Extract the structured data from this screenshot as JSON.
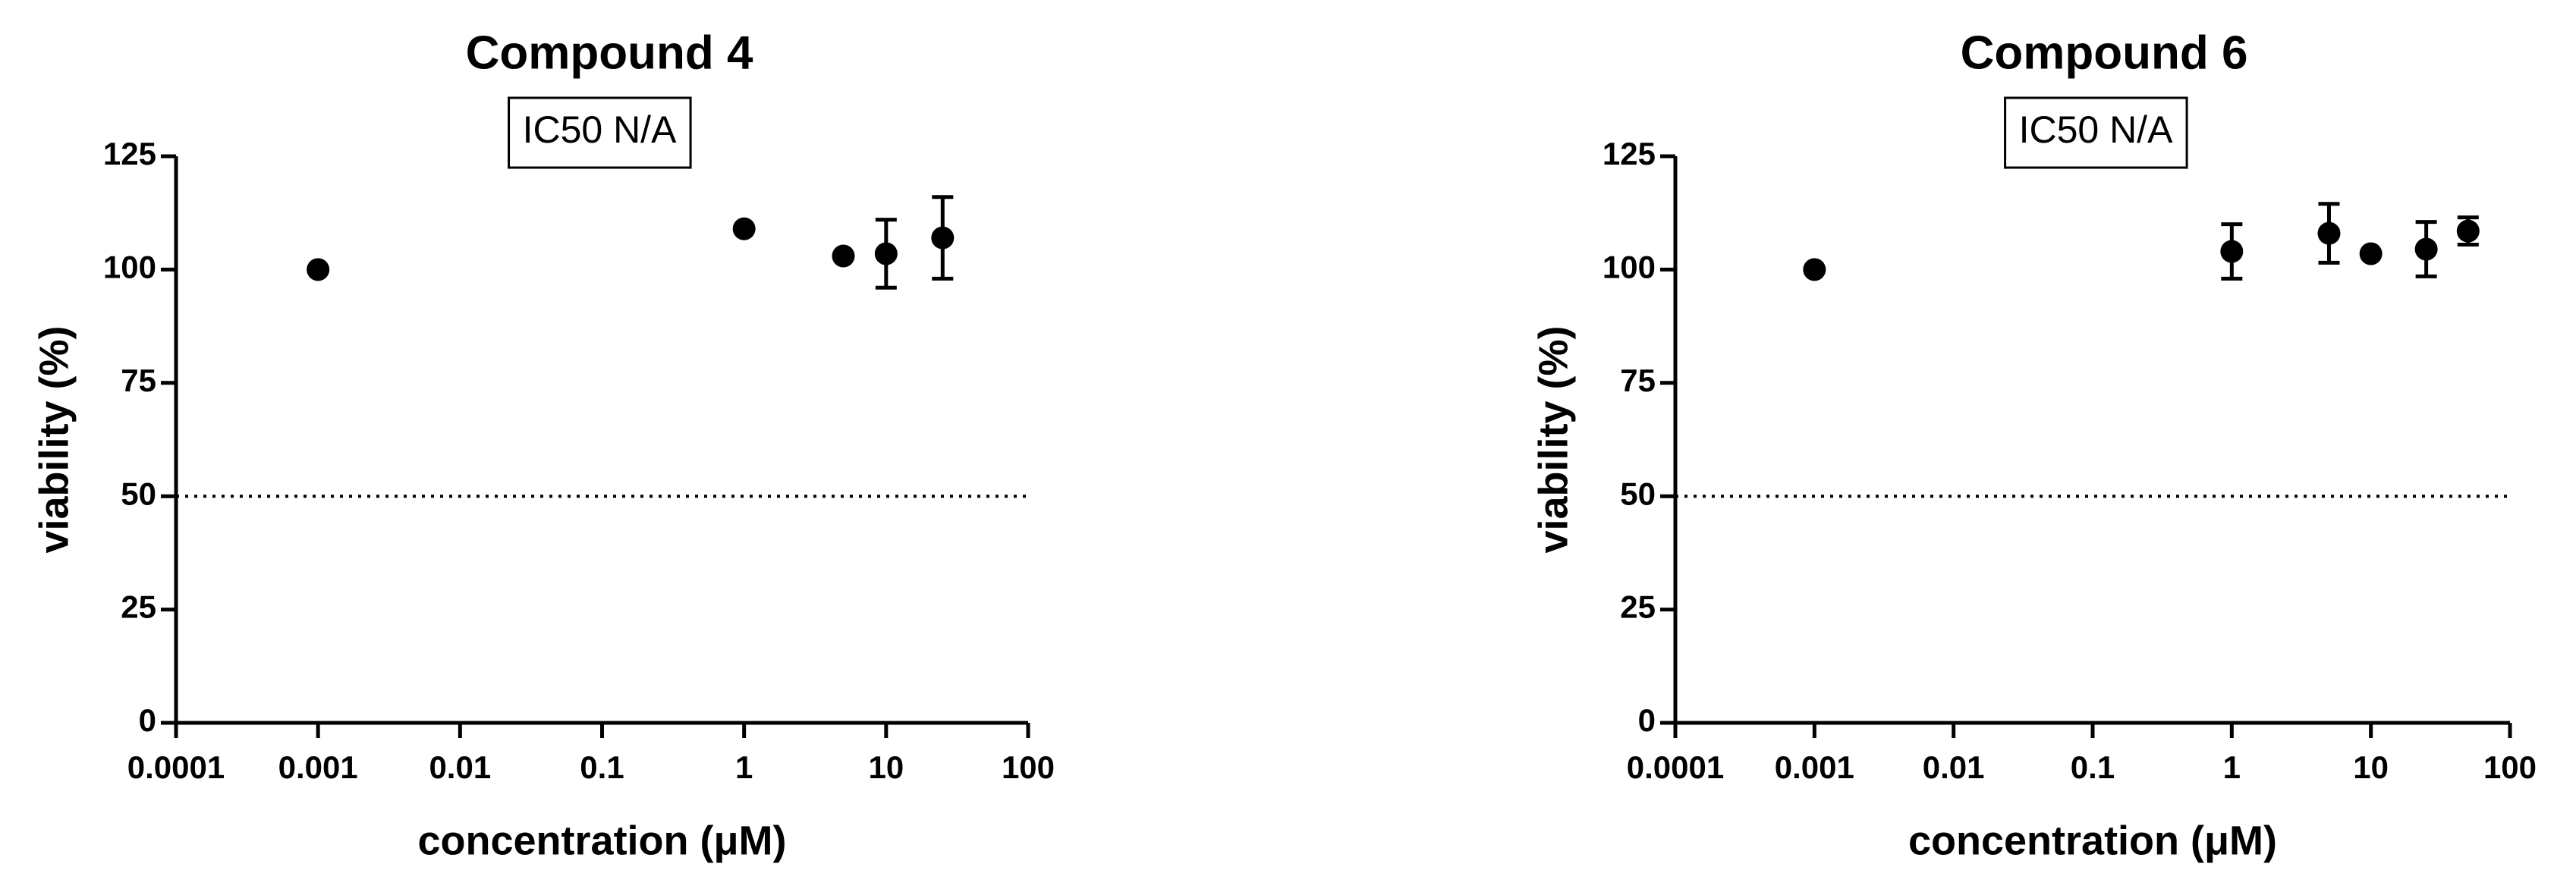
{
  "chart_data": [
    {
      "type": "scatter",
      "title": "Compound 4",
      "annotation": "IC50 N/A",
      "x_label": "concentration (μM)",
      "y_label": "viability (%)",
      "xscale": "log",
      "xlim": [
        0.0001,
        100
      ],
      "xticks": [
        0.0001,
        0.001,
        0.01,
        0.1,
        1,
        10,
        100
      ],
      "ylim": [
        0,
        125
      ],
      "yticks": [
        0,
        25,
        50,
        75,
        100,
        125
      ],
      "hline": 50,
      "series": [
        {
          "color": "#000000",
          "x": [
            0.001,
            1,
            5,
            10,
            25
          ],
          "values": [
            100,
            109,
            103,
            103.5,
            107
          ],
          "errors": [
            0,
            0,
            0,
            7.5,
            9
          ]
        }
      ]
    },
    {
      "type": "scatter",
      "title": "Compound 6",
      "annotation": "IC50 N/A",
      "x_label": "concentration (μM)",
      "y_label": "viability (%)",
      "xscale": "log",
      "xlim": [
        0.0001,
        100
      ],
      "xticks": [
        0.0001,
        0.001,
        0.01,
        0.1,
        1,
        10,
        100
      ],
      "ylim": [
        0,
        125
      ],
      "yticks": [
        0,
        25,
        50,
        75,
        100,
        125
      ],
      "hline": 50,
      "series": [
        {
          "color": "#000000",
          "x": [
            0.001,
            1,
            5,
            10,
            25,
            50
          ],
          "values": [
            100,
            104,
            108,
            103.5,
            104.5,
            108.5
          ],
          "errors": [
            0,
            6,
            6.5,
            0,
            6,
            3
          ]
        }
      ]
    }
  ]
}
